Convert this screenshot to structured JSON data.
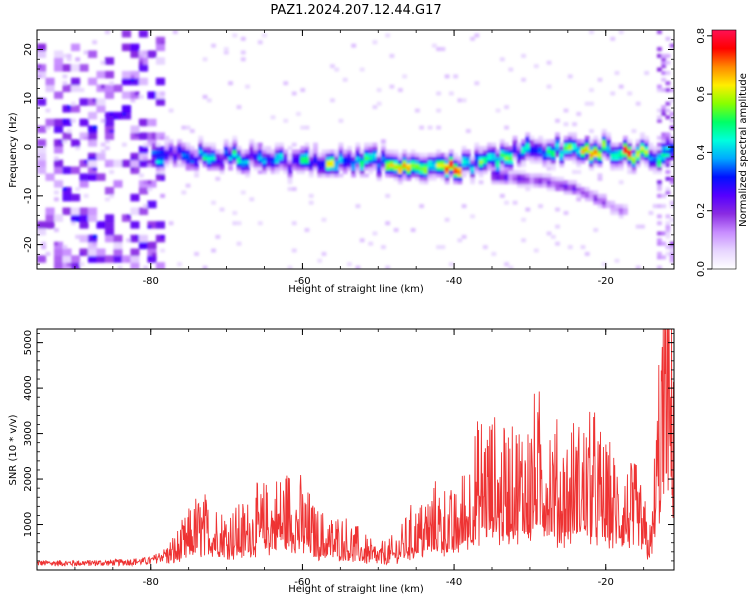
{
  "title": "PAZ1.2024.207.12.44.G17",
  "colors": {
    "snr_line": "#ee3333",
    "colormap": [
      "#ffffff",
      "#e7d5ff",
      "#c78cff",
      "#8a2be2",
      "#5500ff",
      "#0011ff",
      "#00aaff",
      "#00ffdd",
      "#00ff66",
      "#88ff00",
      "#ffee00",
      "#ff8800",
      "#ff0000",
      "#ff1155"
    ]
  },
  "chart_data": [
    {
      "type": "heatmap",
      "title": "PAZ1.2024.207.12.44.G17",
      "xlabel": "Height of straight line (km)",
      "ylabel": "Frequency (Hz)",
      "xlim": [
        -95,
        -11
      ],
      "ylim": [
        -25,
        24
      ],
      "x_ticks": [
        -80,
        -60,
        -40,
        -20
      ],
      "y_ticks": [
        -20,
        -10,
        0,
        10,
        20
      ],
      "colorbar": {
        "label": "Normalized spectral amplitude",
        "range": [
          0.0,
          0.82
        ],
        "ticks": [
          0.0,
          0.2,
          0.4,
          0.6,
          0.8
        ]
      },
      "ridge": {
        "height_km": [
          -78,
          -72,
          -66,
          -60,
          -55,
          -50,
          -45,
          -40,
          -36,
          -32,
          -28,
          -24,
          -20,
          -16,
          -11
        ],
        "frequency_hz": [
          -1.5,
          -2.0,
          -2.5,
          -3.2,
          -2.5,
          -3.0,
          -4.0,
          -4.5,
          -3.0,
          -1.0,
          -0.8,
          -0.5,
          -0.5,
          -1.5,
          -1.5
        ],
        "amplitude": [
          0.35,
          0.38,
          0.38,
          0.45,
          0.55,
          0.5,
          0.6,
          0.78,
          0.5,
          0.45,
          0.4,
          0.55,
          0.68,
          0.8,
          0.5
        ]
      },
      "secondary_ridge": {
        "height_km": [
          -34,
          -28,
          -24,
          -22,
          -20,
          -18
        ],
        "frequency_hz": [
          -6.0,
          -7.0,
          -8.5,
          -10.0,
          -11.5,
          -13.0
        ],
        "amplitude": [
          0.22,
          0.25,
          0.22,
          0.2,
          0.18,
          0.16
        ]
      }
    },
    {
      "type": "line",
      "xlabel": "Height of straight line (km)",
      "ylabel": "SNR (10 * v/v)",
      "xlim": [
        -95,
        -11
      ],
      "ylim": [
        0,
        5300
      ],
      "x_ticks": [
        -80,
        -60,
        -40,
        -20
      ],
      "y_ticks": [
        1000,
        2000,
        3000,
        4000,
        5000
      ],
      "series": [
        {
          "height_km": [
            -95,
            -90,
            -85,
            -80,
            -78,
            -76,
            -74,
            -72,
            -70,
            -68,
            -66,
            -64,
            -62,
            -60,
            -58,
            -56,
            -54,
            -52,
            -50,
            -48,
            -46,
            -44,
            -42,
            -40,
            -38,
            -36,
            -34,
            -32,
            -30,
            -28,
            -26,
            -24,
            -22,
            -20,
            -18,
            -16,
            -14,
            -13,
            -12,
            -11
          ],
          "snr": [
            150,
            150,
            160,
            200,
            350,
            600,
            1000,
            1000,
            850,
            900,
            1100,
            1200,
            1400,
            1200,
            800,
            750,
            700,
            500,
            350,
            450,
            800,
            1000,
            1200,
            1000,
            1600,
            2200,
            1900,
            2000,
            2200,
            2400,
            1800,
            2000,
            2200,
            1700,
            1500,
            1400,
            600,
            3000,
            4500,
            4000
          ]
        }
      ]
    }
  ]
}
